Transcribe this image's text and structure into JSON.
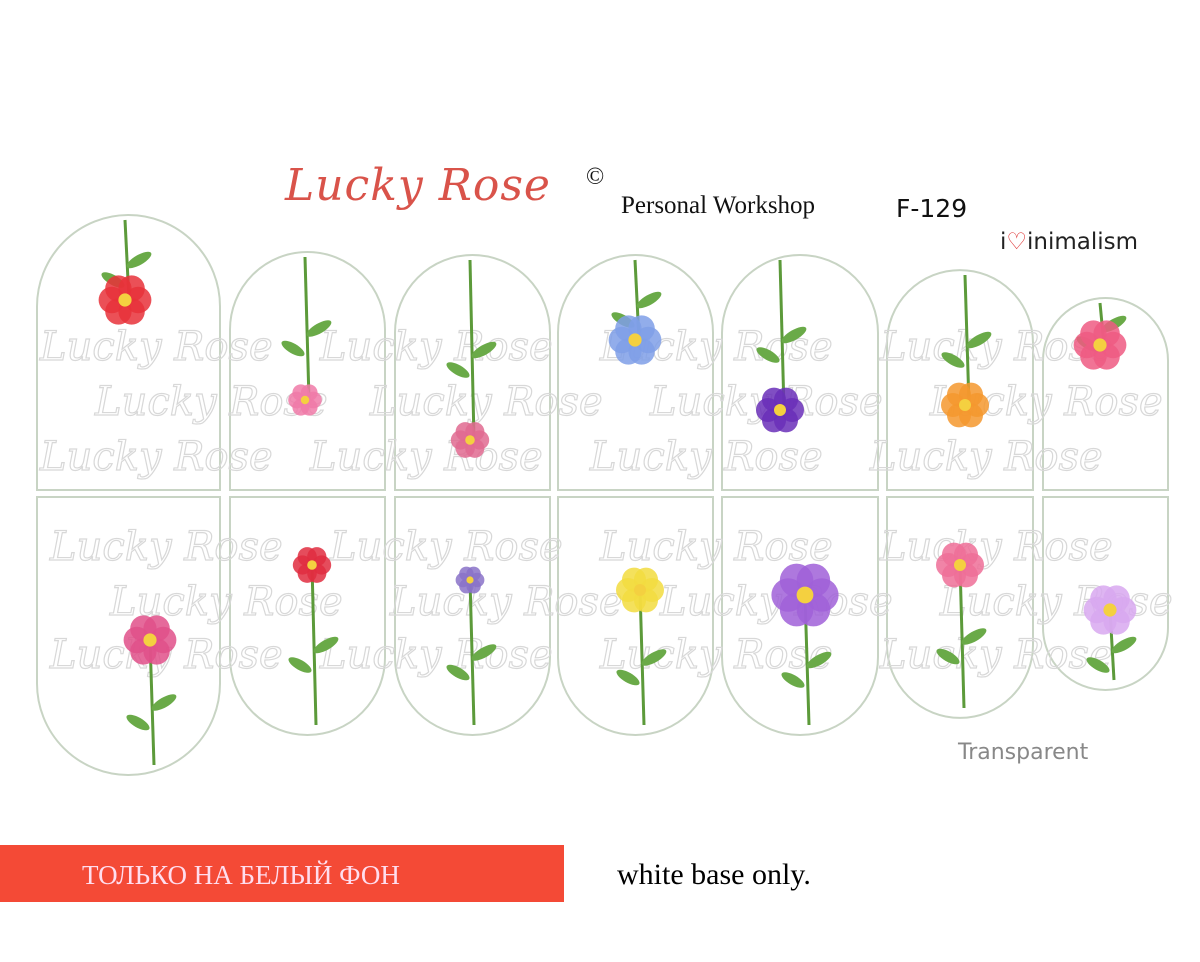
{
  "header": {
    "logo_text": "Lucky Rose",
    "copyright_symbol": "©",
    "subtitle": "Personal Workshop",
    "product_code": "F-129",
    "brand_prefix": "i",
    "brand_heart": "♡",
    "brand_suffix": "inimalism",
    "brand_full": "iminimalism"
  },
  "watermark_text": "Lucky Rose",
  "type_label": "Transparent",
  "footer": {
    "warning_ru": "ТОЛЬКО НА БЕЛЫЙ ФОН",
    "warning_en": "white base only."
  },
  "colors": {
    "logo": "#d9534a",
    "banner": "#f44a36",
    "nail_outline": "#c8d4c4",
    "watermark": "#d8d8d8"
  },
  "decals": {
    "top_row": [
      {
        "flower": "poppy",
        "color": "#e8313a"
      },
      {
        "flower": "cornflower-bud",
        "color": "#f07aa8"
      },
      {
        "flower": "clover",
        "color": "#e06a90"
      },
      {
        "flower": "chicory",
        "color": "#7f9fe8"
      },
      {
        "flower": "iris",
        "color": "#6a2fb8"
      },
      {
        "flower": "ranunculus",
        "color": "#f5982e"
      },
      {
        "flower": "poppy-pink",
        "color": "#ef5a82"
      }
    ],
    "bottom_row": [
      {
        "flower": "lily",
        "color": "#e0508a"
      },
      {
        "flower": "tulip-red",
        "color": "#e02d40"
      },
      {
        "flower": "lavender",
        "color": "#8a72c8"
      },
      {
        "flower": "tulip-yellow",
        "color": "#f2dc40"
      },
      {
        "flower": "aster",
        "color": "#a060d8"
      },
      {
        "flower": "carnation",
        "color": "#ef6f98"
      },
      {
        "flower": "cosmos",
        "color": "#d8a8f0"
      }
    ]
  }
}
